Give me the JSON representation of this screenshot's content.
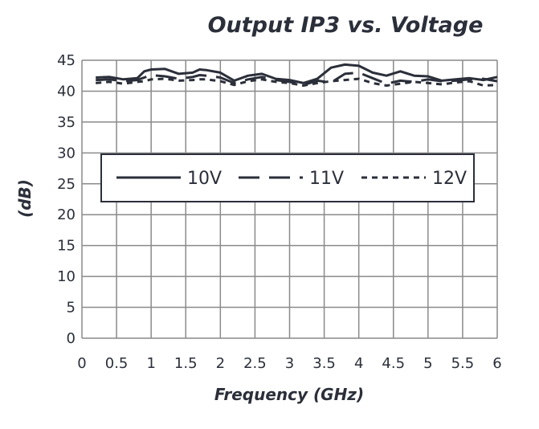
{
  "chart_data": {
    "type": "line",
    "title": "Output IP3 vs. Voltage",
    "xlabel": "Frequency (GHz)",
    "ylabel": "(dB)",
    "xlim": [
      0,
      6
    ],
    "ylim": [
      0,
      45
    ],
    "xticks": [
      "0",
      "0.5",
      "1",
      "1.5",
      "2",
      "2.5",
      "3",
      "3.5",
      "4",
      "4.5",
      "5",
      "5.5",
      "6"
    ],
    "yticks": [
      "0",
      "5",
      "10",
      "15",
      "20",
      "25",
      "30",
      "35",
      "40",
      "45"
    ],
    "grid": true,
    "legend": "inside-top",
    "x": [
      0.2,
      0.4,
      0.6,
      0.8,
      0.9,
      1.0,
      1.2,
      1.4,
      1.6,
      1.7,
      1.8,
      2.0,
      2.2,
      2.4,
      2.6,
      2.8,
      3.0,
      3.2,
      3.4,
      3.6,
      3.8,
      4.0,
      4.2,
      4.4,
      4.6,
      4.8,
      5.0,
      5.2,
      5.4,
      5.6,
      5.8,
      6.0
    ],
    "series": [
      {
        "name": "10V",
        "dash": "solid",
        "values": [
          42.2,
          42.3,
          41.9,
          42.1,
          43.2,
          43.5,
          43.6,
          42.8,
          43.0,
          43.5,
          43.4,
          43.0,
          41.7,
          42.5,
          42.8,
          42.0,
          41.8,
          41.3,
          42.0,
          43.8,
          44.3,
          44.1,
          43.0,
          42.5,
          43.2,
          42.5,
          42.4,
          41.7,
          41.9,
          42.1,
          41.8,
          42.3
        ]
      },
      {
        "name": "11V",
        "dash": "long-dash",
        "values": [
          41.8,
          41.9,
          41.6,
          41.8,
          42.2,
          42.6,
          42.4,
          42.0,
          42.3,
          42.6,
          42.5,
          42.2,
          41.3,
          41.9,
          42.3,
          41.8,
          41.5,
          41.0,
          41.7,
          41.4,
          42.8,
          43.0,
          42.1,
          41.2,
          41.7,
          41.5,
          41.9,
          41.6,
          41.7,
          41.9,
          42.0,
          41.6
        ]
      },
      {
        "name": "12V",
        "dash": "short-dash",
        "values": [
          41.3,
          41.5,
          41.2,
          41.5,
          41.6,
          41.9,
          42.0,
          41.7,
          41.8,
          41.9,
          41.9,
          41.6,
          41.0,
          41.6,
          41.9,
          41.5,
          41.3,
          40.9,
          41.3,
          41.6,
          41.8,
          42.0,
          41.3,
          40.9,
          41.2,
          41.5,
          41.3,
          41.1,
          41.4,
          41.6,
          40.9,
          41.0
        ]
      }
    ]
  }
}
